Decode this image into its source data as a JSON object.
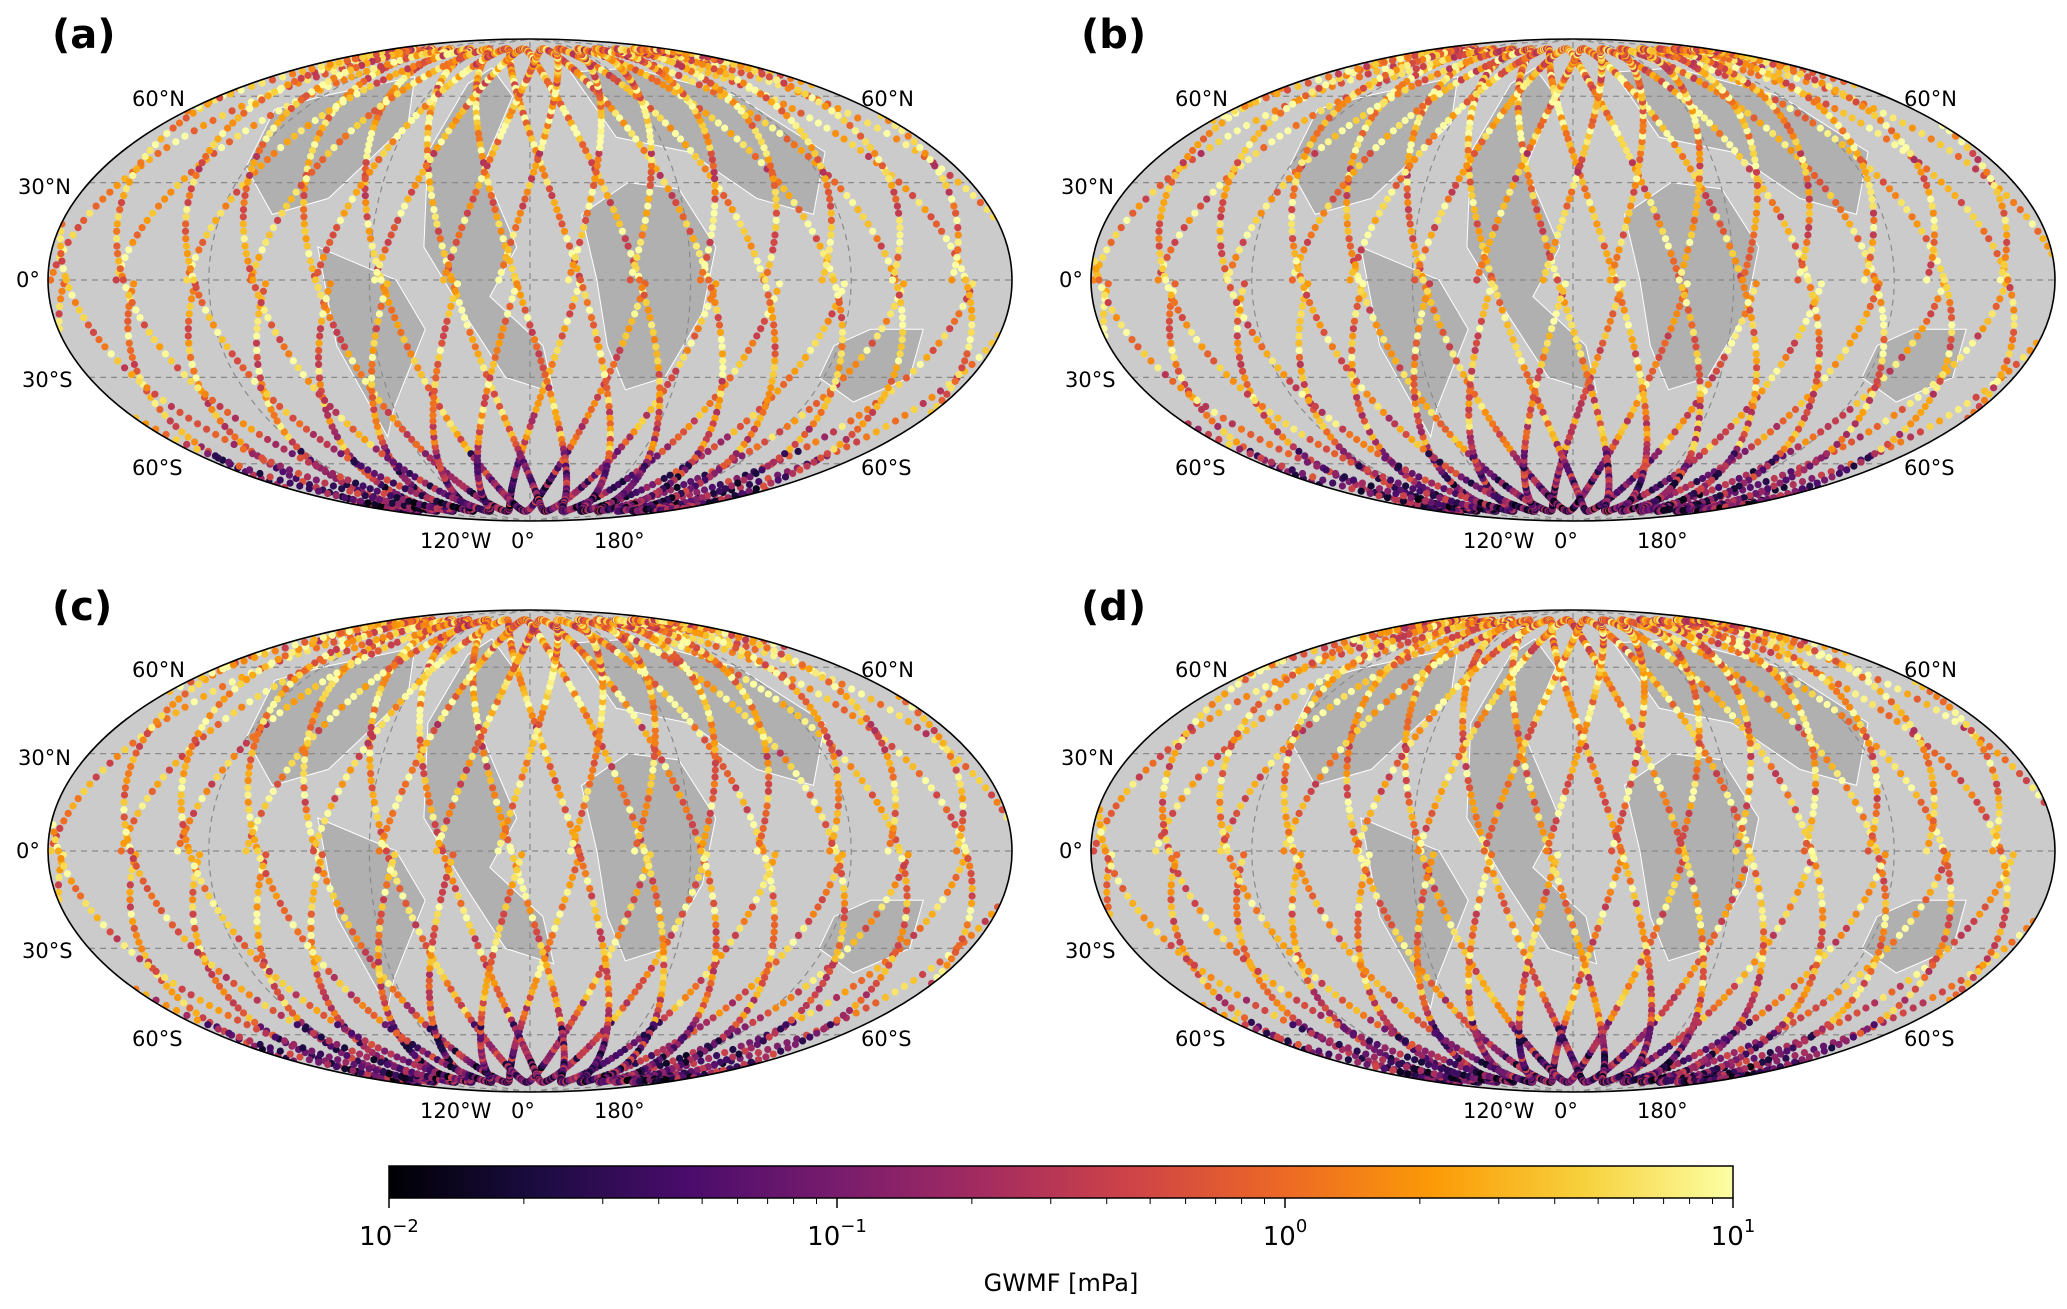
{
  "figure": {
    "panels": [
      {
        "label": "(a)"
      },
      {
        "label": "(b)"
      },
      {
        "label": "(c)"
      },
      {
        "label": "(d)"
      }
    ],
    "lat_labels_left": [
      "60°N",
      "30°N",
      "0°",
      "30°S",
      "60°S"
    ],
    "lat_labels_right": [
      "60°N",
      "60°S"
    ],
    "lon_labels": [
      "120°W",
      "0°",
      "180°"
    ],
    "colorbar": {
      "label": "GWMF [mPa]",
      "ticks": [
        {
          "base": "10",
          "exp": "−2"
        },
        {
          "base": "10",
          "exp": "−1"
        },
        {
          "base": "10",
          "exp": "0"
        },
        {
          "base": "10",
          "exp": "1"
        }
      ],
      "scale": "log",
      "range": [
        0.01,
        10
      ],
      "colormap": "inferno",
      "colormap_stops": [
        "#000004",
        "#1b0c41",
        "#4a0c6b",
        "#781c6d",
        "#a52c60",
        "#cf4446",
        "#ed6925",
        "#fb9b06",
        "#f7d13d",
        "#fcffa4"
      ]
    },
    "map_style": {
      "projection": "mollweide",
      "ocean_color": "#cbcbcb",
      "land_color": "#b0b0b0",
      "coastline_color": "#ffffff",
      "gridline_style": "dashed",
      "gridline_color": "#8a8a8a"
    }
  }
}
